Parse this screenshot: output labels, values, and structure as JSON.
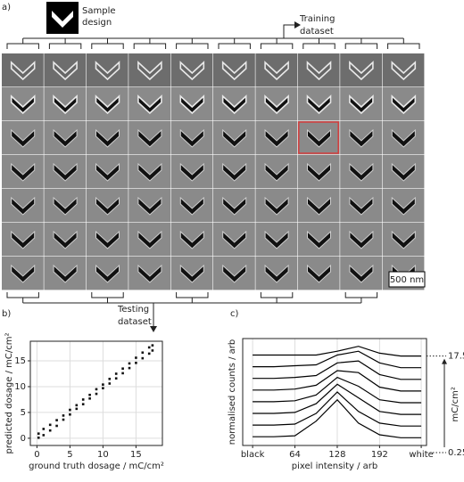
{
  "panel_a": {
    "label": "a)",
    "sample_design": [
      "Sample",
      "design"
    ],
    "training": [
      "Training",
      "dataset"
    ],
    "testing": [
      "Testing",
      "dataset"
    ],
    "scale_bar": "500 nm"
  },
  "chart_data": [
    {
      "type": "scatter",
      "label": "b)",
      "xlabel": "ground truth dosage / mC/cm²",
      "ylabel": "predicted dosage / mC/cm²",
      "x": [
        0.25,
        0.25,
        1,
        1,
        2,
        2,
        3,
        3,
        4,
        4,
        5,
        5,
        6,
        6,
        7,
        7,
        8,
        8,
        9,
        9,
        10,
        10,
        11,
        11,
        12,
        12,
        13,
        13,
        14,
        14,
        15,
        15,
        16,
        16,
        17,
        17,
        17.5,
        17.5
      ],
      "values": [
        0.1,
        0.9,
        0.6,
        1.8,
        1.5,
        2.6,
        2.4,
        3.5,
        3.6,
        4.4,
        4.6,
        5.5,
        5.7,
        6.4,
        6.6,
        7.5,
        7.7,
        8.4,
        8.6,
        9.5,
        9.7,
        10.4,
        10.6,
        11.5,
        11.6,
        12.5,
        12.6,
        13.5,
        13.6,
        14.5,
        14.6,
        15.6,
        15.5,
        16.6,
        16.4,
        17.6,
        17.0,
        18.0
      ],
      "color": "#111111",
      "xlim": [
        -1,
        19
      ],
      "ylim": [
        -1.4,
        18.8
      ],
      "xticks": [
        0,
        5,
        10,
        15
      ],
      "yticks": [
        0,
        5,
        10,
        15
      ],
      "grid": true
    },
    {
      "type": "line",
      "label": "c)",
      "xlabel": "pixel intensity / arb",
      "ylabel": "normalised counts / arb",
      "x": [
        0,
        32,
        64,
        96,
        128,
        160,
        192,
        224,
        255
      ],
      "series": [
        {
          "color": "#000000",
          "values": [
            4,
            4,
            5,
            20,
            42,
            18,
            6,
            3,
            3
          ]
        },
        {
          "color": "#000000",
          "values": [
            16,
            16,
            17,
            28,
            50,
            30,
            18,
            15,
            15
          ]
        },
        {
          "color": "#000000",
          "values": [
            28,
            28,
            29,
            38,
            58,
            44,
            30,
            27,
            27
          ]
        },
        {
          "color": "#000000",
          "values": [
            40,
            40,
            41,
            47,
            65,
            56,
            42,
            39,
            39
          ]
        },
        {
          "color": "#000000",
          "values": [
            52,
            52,
            53,
            57,
            72,
            70,
            55,
            51,
            51
          ]
        },
        {
          "color": "#000000",
          "values": [
            64,
            64,
            65,
            67,
            80,
            82,
            68,
            63,
            63
          ]
        },
        {
          "color": "#000000",
          "values": [
            76,
            76,
            77,
            78,
            88,
            92,
            80,
            75,
            75
          ]
        },
        {
          "color": "#000000",
          "values": [
            88,
            88,
            88,
            88,
            92,
            97,
            90,
            87,
            87
          ]
        }
      ],
      "xlim": [
        -15,
        263
      ],
      "ylim": [
        -5,
        105
      ],
      "xticks": [
        {
          "value": 0,
          "label": "black"
        },
        64,
        128,
        192,
        {
          "value": 255,
          "label": "white"
        }
      ],
      "grid": true,
      "dose_top": "17.5",
      "dose_bottom": "0.25",
      "dose_unit": "mC/cm²"
    }
  ]
}
